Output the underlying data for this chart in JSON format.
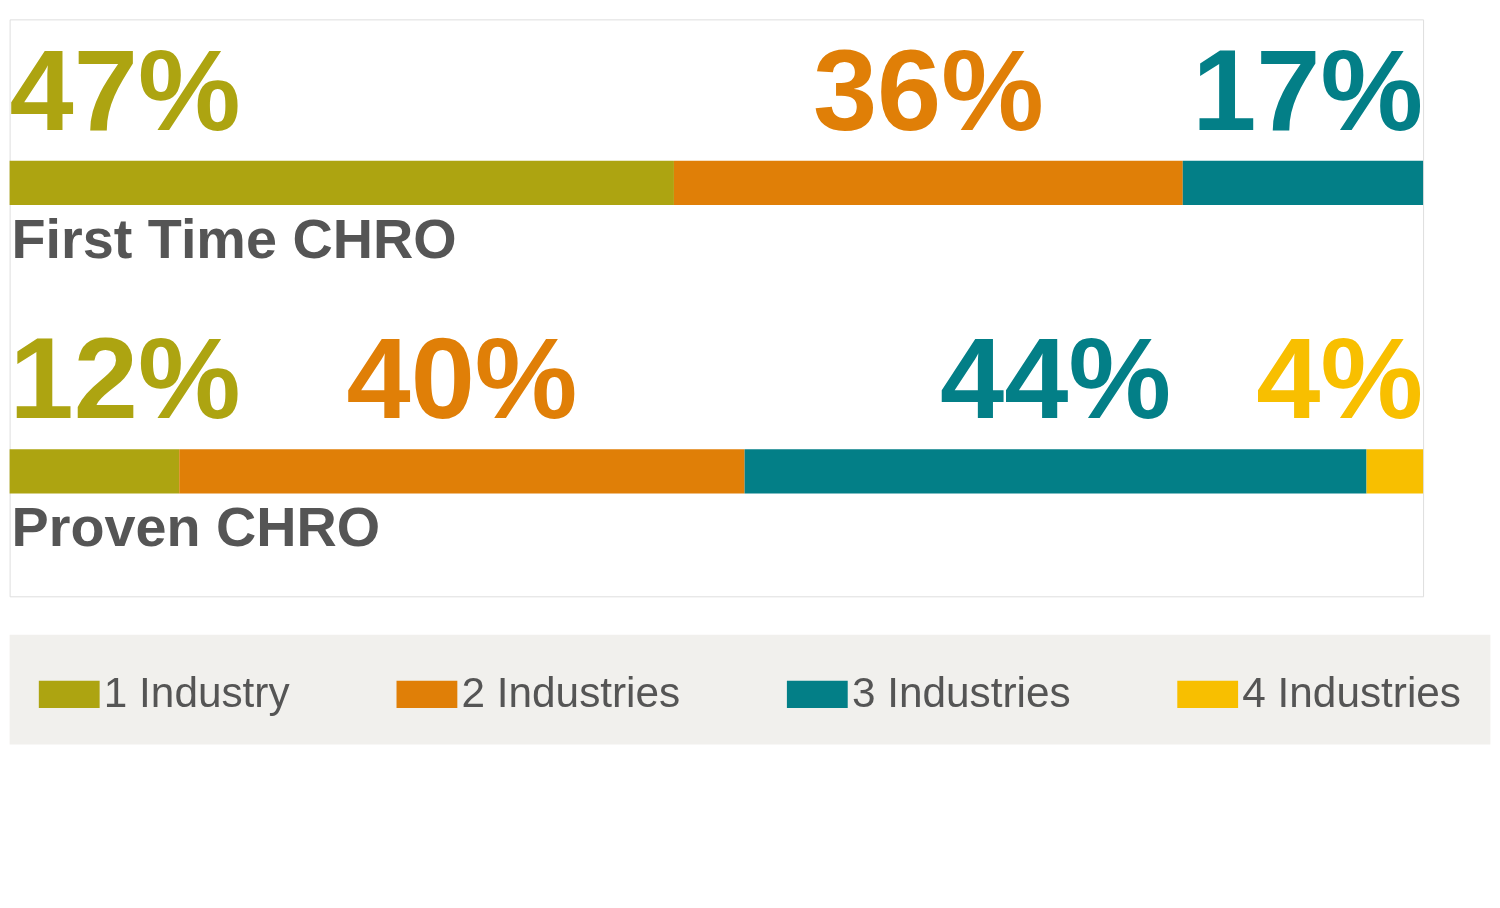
{
  "chart_data": {
    "type": "bar",
    "orientation": "horizontal",
    "stacked": true,
    "categories": [
      "First Time CHRO",
      "Proven CHRO"
    ],
    "series": [
      {
        "name": "1 Industry",
        "color": "#ada411",
        "values": [
          47,
          12
        ],
        "value_labels": [
          "47%",
          "12%"
        ]
      },
      {
        "name": "2 Industries",
        "color": "#e07f07",
        "values": [
          36,
          40
        ],
        "value_labels": [
          "36%",
          "40%"
        ]
      },
      {
        "name": "3 Industries",
        "color": "#037f87",
        "values": [
          17,
          44
        ],
        "value_labels": [
          "17%",
          "44%"
        ]
      },
      {
        "name": "4 Industries",
        "color": "#f8bf00",
        "values": [
          null,
          4
        ],
        "value_labels": [
          null,
          "4%"
        ]
      }
    ],
    "xlim": [
      0,
      100
    ],
    "tick_labels": false,
    "legend": "bottom"
  }
}
